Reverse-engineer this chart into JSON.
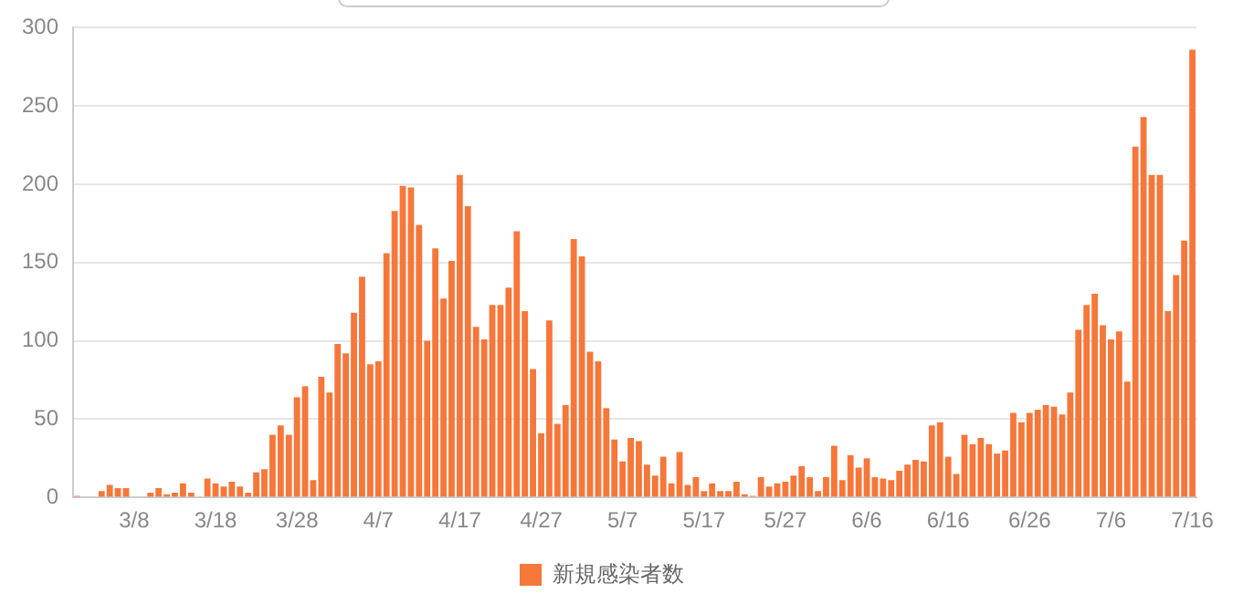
{
  "chart_data": {
    "type": "bar",
    "categories": [
      null,
      null,
      null,
      null,
      null,
      null,
      null,
      "3/8",
      null,
      null,
      null,
      null,
      null,
      null,
      null,
      null,
      null,
      "3/18",
      null,
      null,
      null,
      null,
      null,
      null,
      null,
      null,
      null,
      "3/28",
      null,
      null,
      null,
      null,
      null,
      null,
      null,
      null,
      null,
      "4/7",
      null,
      null,
      null,
      null,
      null,
      null,
      null,
      null,
      null,
      "4/17",
      null,
      null,
      null,
      null,
      null,
      null,
      null,
      null,
      null,
      "4/27",
      null,
      null,
      null,
      null,
      null,
      null,
      null,
      null,
      null,
      "5/7",
      null,
      null,
      null,
      null,
      null,
      null,
      null,
      null,
      null,
      "5/17",
      null,
      null,
      null,
      null,
      null,
      null,
      null,
      null,
      null,
      "5/27",
      null,
      null,
      null,
      null,
      null,
      null,
      null,
      null,
      null,
      "6/6",
      null,
      null,
      null,
      null,
      null,
      null,
      null,
      null,
      null,
      "6/16",
      null,
      null,
      null,
      null,
      null,
      null,
      null,
      null,
      null,
      "6/26",
      null,
      null,
      null,
      null,
      null,
      null,
      null,
      null,
      null,
      "7/6",
      null,
      null,
      null,
      null,
      null,
      null,
      null,
      null,
      null,
      "7/16"
    ],
    "series": [
      {
        "name": "新規感染者数",
        "color": "#f5773a",
        "values": [
          1,
          0,
          0,
          4,
          8,
          6,
          6,
          0,
          0,
          3,
          6,
          2,
          3,
          9,
          3,
          0,
          12,
          9,
          7,
          10,
          7,
          3,
          16,
          18,
          40,
          46,
          40,
          64,
          71,
          11,
          77,
          67,
          98,
          92,
          118,
          141,
          85,
          87,
          156,
          183,
          199,
          198,
          174,
          100,
          159,
          127,
          151,
          206,
          186,
          109,
          101,
          123,
          123,
          134,
          170,
          119,
          82,
          41,
          113,
          47,
          59,
          165,
          154,
          93,
          87,
          57,
          37,
          23,
          38,
          36,
          21,
          14,
          26,
          9,
          29,
          8,
          13,
          4,
          9,
          4,
          4,
          10,
          2,
          1,
          13,
          7,
          9,
          10,
          14,
          20,
          13,
          4,
          13,
          33,
          11,
          27,
          19,
          25,
          13,
          12,
          11,
          17,
          21,
          24,
          23,
          46,
          48,
          26,
          15,
          40,
          34,
          38,
          34,
          28,
          30,
          54,
          48,
          54,
          56,
          59,
          58,
          53,
          67,
          107,
          123,
          130,
          110,
          101,
          106,
          74,
          224,
          243,
          206,
          206,
          119,
          142,
          164,
          286
        ]
      }
    ],
    "ylim": [
      0,
      300
    ],
    "yticks": [
      0,
      50,
      100,
      150,
      200,
      250,
      300
    ],
    "grid": "y",
    "legend": "bottom"
  }
}
